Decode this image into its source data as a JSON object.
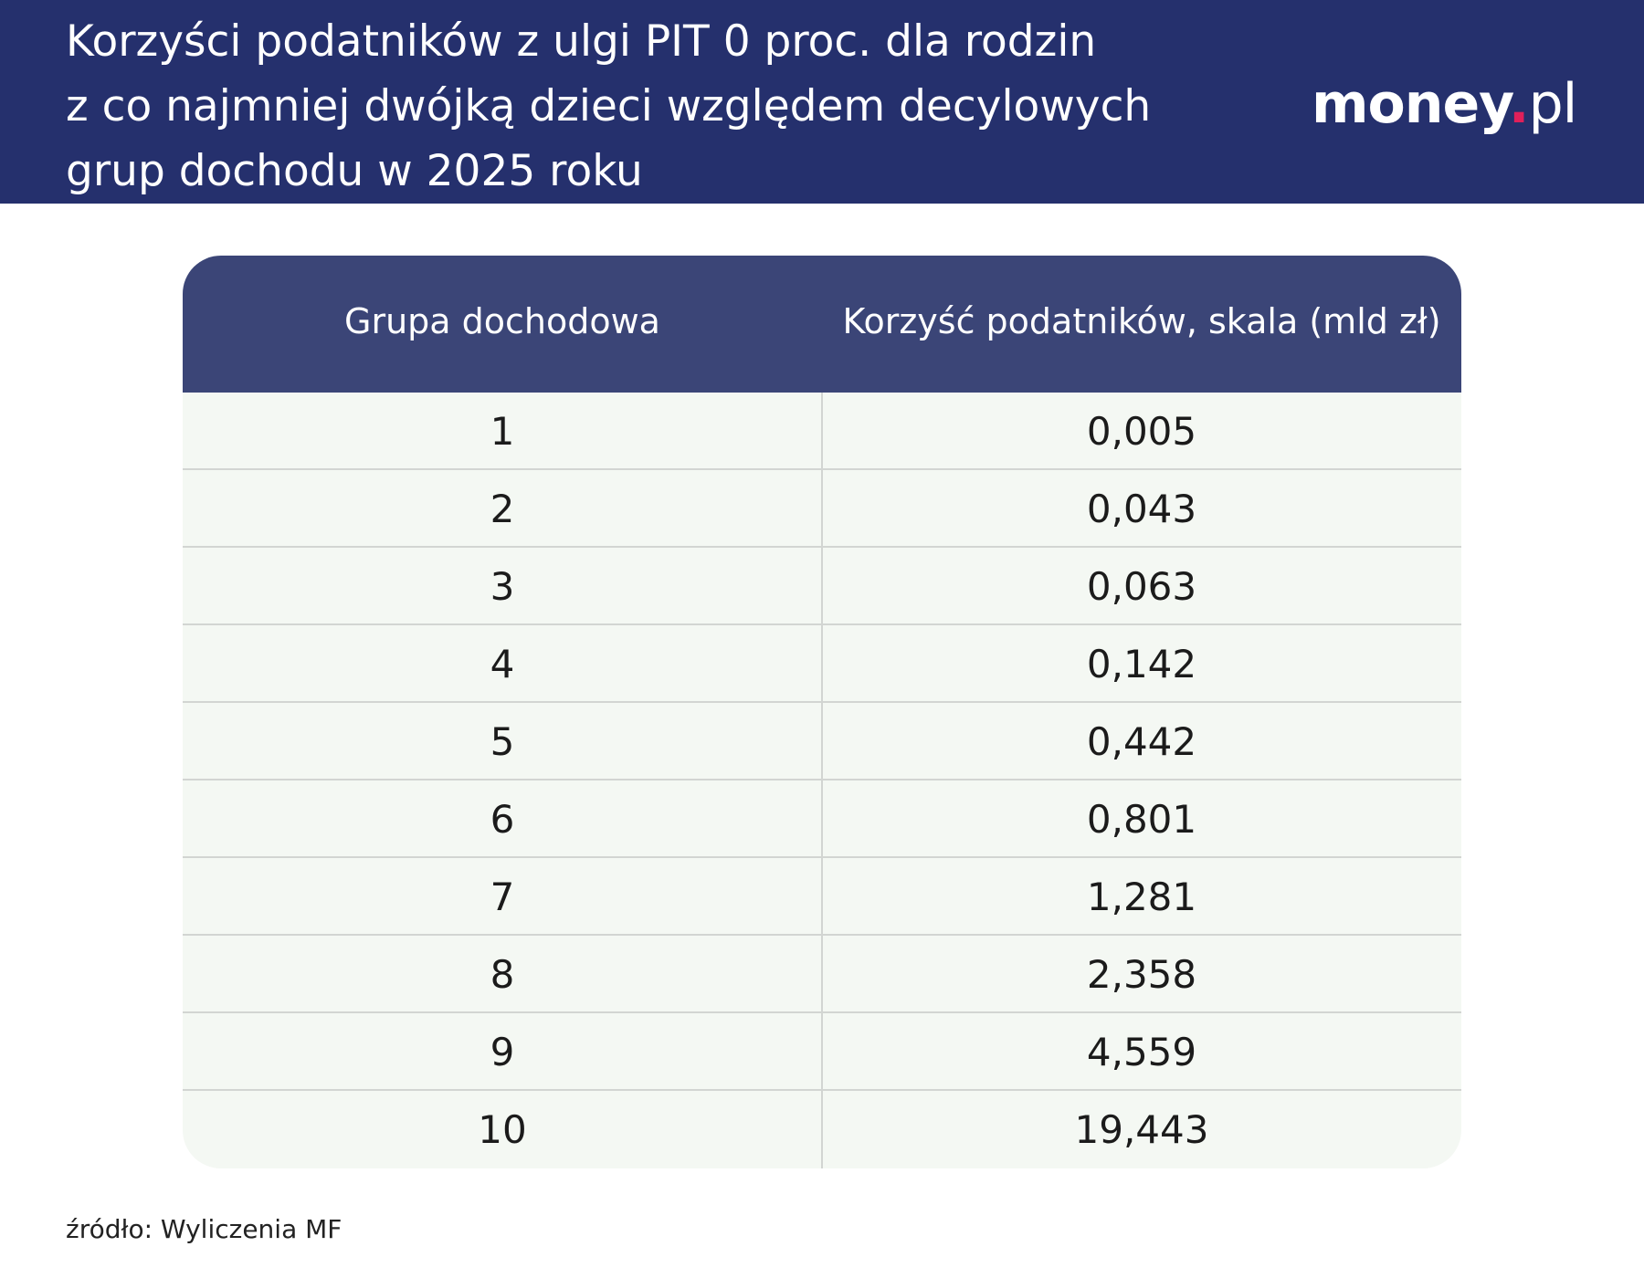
{
  "header": {
    "title_lines": [
      "Korzyści podatników z ulgi PIT 0 proc. dla rodzin",
      "z co najmniej dwójką dzieci względem decylowych",
      "grup dochodu w 2025 roku"
    ],
    "logo": {
      "word": "money",
      "dot": ".",
      "tld": "pl"
    },
    "colors": {
      "background": "#25306d",
      "logo_dot": "#e0205a"
    }
  },
  "chart_data": {
    "type": "table",
    "title": "Korzyści podatników z ulgi PIT 0 proc. dla rodzin z co najmniej dwójką dzieci względem decylowych grup dochodu w 2025 roku",
    "columns": [
      "Grupa dochodowa",
      "Korzyść podatników, skala (mld zł)"
    ],
    "rows": [
      [
        "1",
        "0,005"
      ],
      [
        "2",
        "0,043"
      ],
      [
        "3",
        "0,063"
      ],
      [
        "4",
        "0,142"
      ],
      [
        "5",
        "0,442"
      ],
      [
        "6",
        "0,801"
      ],
      [
        "7",
        "1,281"
      ],
      [
        "8",
        "2,358"
      ],
      [
        "9",
        "4,559"
      ],
      [
        "10",
        "19,443"
      ]
    ],
    "colors": {
      "header": "#3b4577",
      "body": "#f4f8f3",
      "divider": "#d2d5d2"
    }
  },
  "footer": {
    "source": "źródło: Wyliczenia MF",
    "watermark_icon": "wp-logo-icon"
  }
}
